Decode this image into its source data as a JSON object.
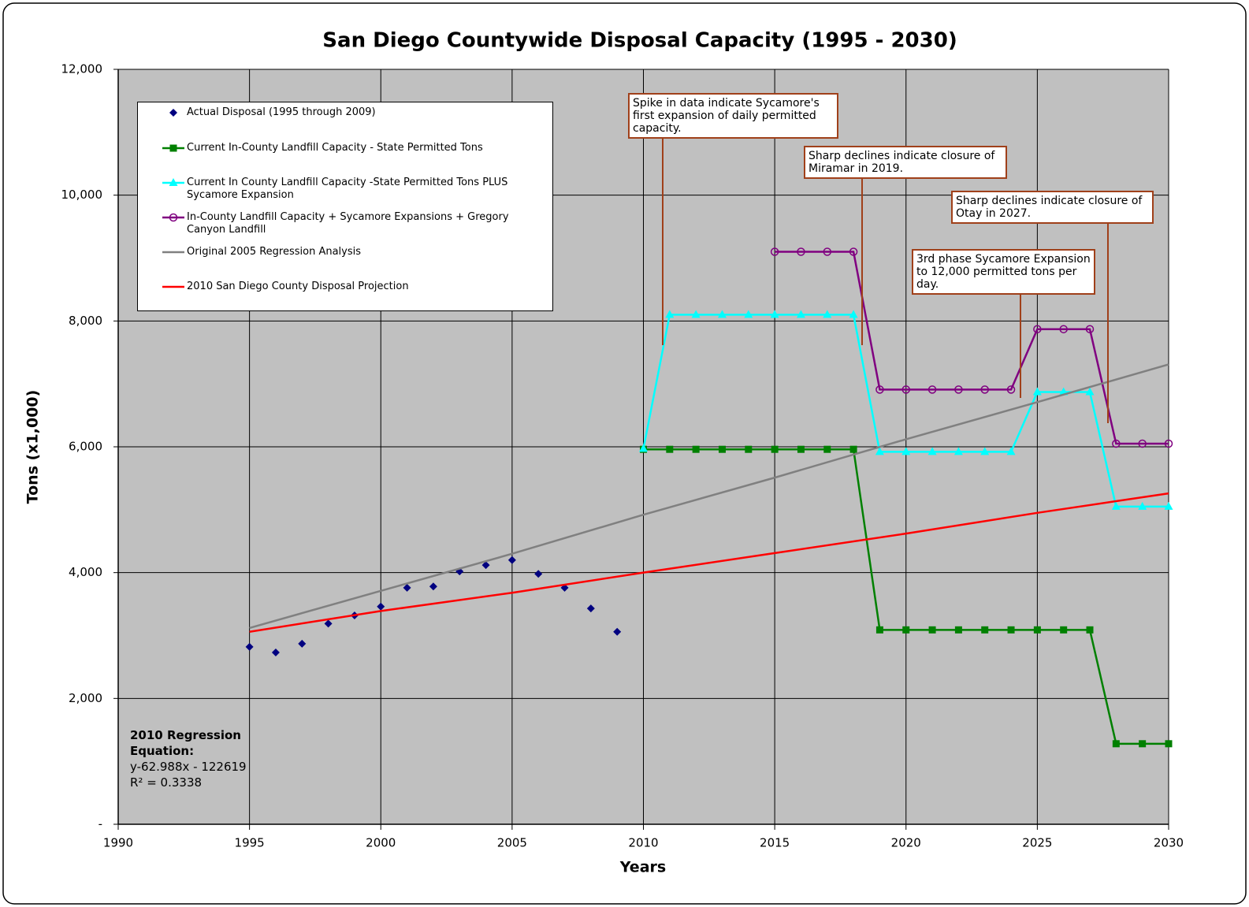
{
  "chart_data": {
    "type": "line",
    "title": "San Diego Countywide Disposal Capacity (1995 - 2030)",
    "x_label": "Years",
    "y_label": "Tons (x1,000)",
    "xlim": [
      1990,
      2030
    ],
    "xticks": [
      1990,
      1995,
      2000,
      2005,
      2010,
      2015,
      2020,
      2025,
      2030
    ],
    "ylim": [
      0,
      12000
    ],
    "yticks": [
      {
        "value": 0,
        "label": "-"
      },
      {
        "value": 2000,
        "label": "2,000"
      },
      {
        "value": 4000,
        "label": "4,000"
      },
      {
        "value": 6000,
        "label": "6,000"
      },
      {
        "value": 8000,
        "label": "8,000"
      },
      {
        "value": 10000,
        "label": "10,000"
      },
      {
        "value": 12000,
        "label": "12,000"
      }
    ],
    "grid": true,
    "plot_background": "#c0c0c0",
    "series": [
      {
        "name": "Actual Disposal (1995 through 2009)",
        "color": "#000080",
        "marker": "diamond",
        "line": false,
        "x": [
          1995,
          1996,
          1997,
          1998,
          1999,
          2000,
          2001,
          2002,
          2003,
          2004,
          2005,
          2006,
          2007,
          2008,
          2009
        ],
        "values": [
          2820,
          2730,
          2870,
          3190,
          3320,
          3460,
          3760,
          3780,
          4020,
          4120,
          4200,
          3980,
          3760,
          3430,
          3060
        ]
      },
      {
        "name": "Current In-County Landfill Capacity - State Permitted Tons",
        "color": "#008000",
        "marker": "square",
        "line": true,
        "x": [
          2010,
          2011,
          2012,
          2013,
          2014,
          2015,
          2016,
          2017,
          2018,
          2019,
          2020,
          2021,
          2022,
          2023,
          2024,
          2025,
          2026,
          2027,
          2028,
          2029,
          2030
        ],
        "values": [
          5960,
          5960,
          5960,
          5960,
          5960,
          5960,
          5960,
          5960,
          5960,
          3090,
          3090,
          3090,
          3090,
          3090,
          3090,
          3090,
          3090,
          3090,
          1280,
          1280,
          1280
        ]
      },
      {
        "name": "Current In County Landfill Capacity -State Permitted Tons PLUS Sycamore Expansion",
        "color": "#00ffff",
        "marker": "triangle",
        "line": true,
        "x": [
          2010,
          2011,
          2012,
          2013,
          2014,
          2015,
          2016,
          2017,
          2018,
          2019,
          2020,
          2021,
          2022,
          2023,
          2024,
          2025,
          2026,
          2027,
          2028,
          2029,
          2030
        ],
        "values": [
          5970,
          8100,
          8100,
          8100,
          8100,
          8100,
          8100,
          8100,
          8100,
          5920,
          5920,
          5920,
          5920,
          5920,
          5920,
          6870,
          6870,
          6870,
          5050,
          5050,
          5050
        ]
      },
      {
        "name": "In-County Landfill Capacity + Sycamore Expansions + Gregory Canyon Landfill",
        "color": "#800080",
        "marker": "circle",
        "line": true,
        "x": [
          2015,
          2016,
          2017,
          2018,
          2019,
          2020,
          2021,
          2022,
          2023,
          2024,
          2025,
          2026,
          2027,
          2028,
          2029,
          2030
        ],
        "values": [
          9100,
          9100,
          9100,
          9100,
          6910,
          6910,
          6910,
          6910,
          6910,
          6910,
          7870,
          7870,
          7870,
          6050,
          6050,
          6050
        ]
      },
      {
        "name": "Original 2005 Regression Analysis",
        "color": "#808080",
        "marker": "none",
        "line": true,
        "x": [
          1995,
          2000,
          2005,
          2010,
          2015,
          2020,
          2025,
          2030
        ],
        "values": [
          3120,
          3710,
          4300,
          4920,
          5510,
          6120,
          6710,
          7310
        ]
      },
      {
        "name": "2010 San Diego County Disposal Projection",
        "color": "#ff0000",
        "marker": "none",
        "line": true,
        "x": [
          1995,
          2000,
          2005,
          2010,
          2015,
          2020,
          2025,
          2030
        ],
        "values": [
          3060,
          3390,
          3680,
          4000,
          4310,
          4620,
          4950,
          5260
        ]
      }
    ],
    "annotations": [
      "Spike in data indicate Sycamore's first expansion of daily permitted capacity.",
      "Sharp declines indicate closure of Miramar in 2019.",
      "Sharp declines indicate closure of Otay in 2027.",
      "3rd phase Sycamore Expansion to 12,000 permitted tons per day."
    ],
    "regression_note": {
      "title": "2010 Regression Equation:",
      "lines": [
        "y-62.988x - 122619",
        "R² = 0.3338"
      ]
    }
  }
}
